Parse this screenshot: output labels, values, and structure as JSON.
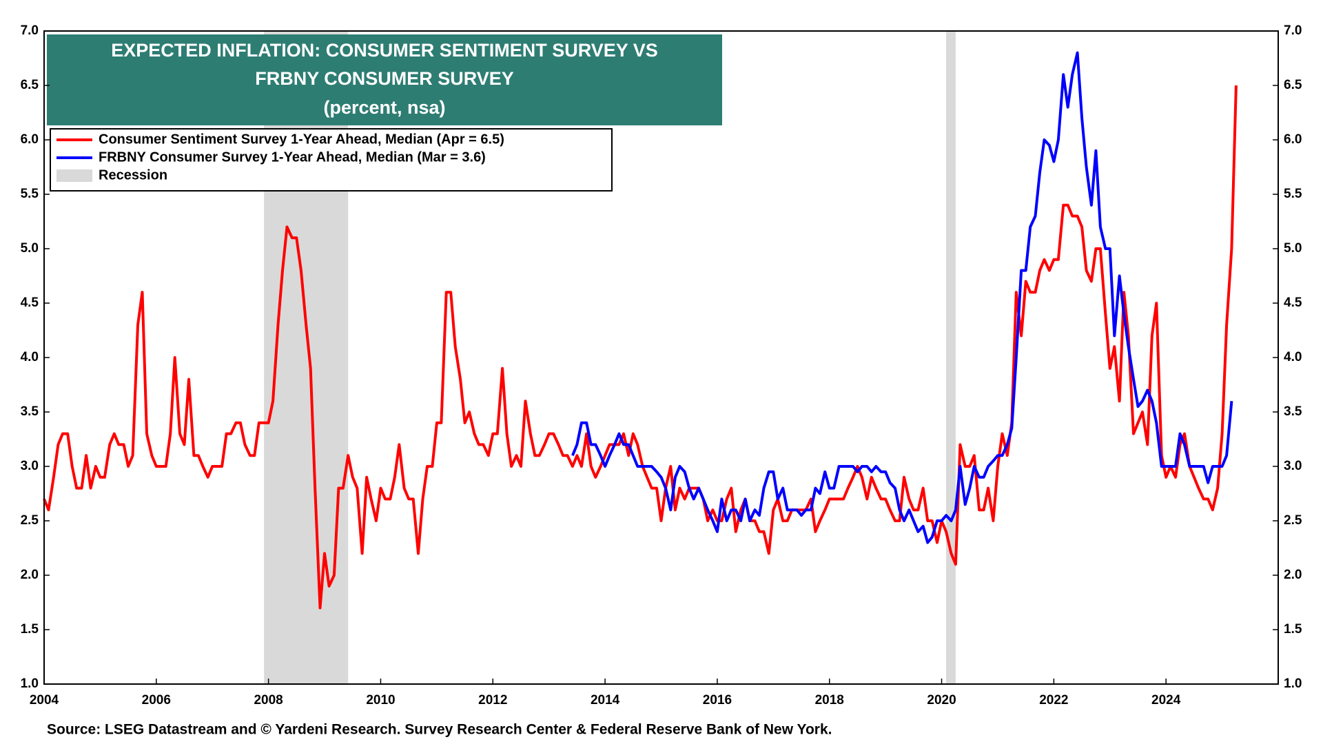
{
  "chart_data": {
    "type": "line",
    "title": [
      "EXPECTED INFLATION: CONSUMER SENTIMENT SURVEY VS",
      "FRBNY CONSUMER SURVEY"
    ],
    "subtitle": "(percent, nsa)",
    "source": "Source: LSEG Datastream and © Yardeni Research. Survey Research Center & Federal Reserve Bank of New York.",
    "xlim": [
      2004,
      2026
    ],
    "xticks": [
      2004,
      2006,
      2008,
      2010,
      2012,
      2014,
      2016,
      2018,
      2020,
      2022,
      2024
    ],
    "ylim": [
      1,
      7
    ],
    "yticks": [
      {
        "value": 1,
        "label": "1.0"
      },
      {
        "value": 1.5,
        "label": "1.5"
      },
      {
        "value": 2,
        "label": "2.0"
      },
      {
        "value": 2.5,
        "label": "2.5"
      },
      {
        "value": 3,
        "label": "3.0"
      },
      {
        "value": 3.5,
        "label": "3.5"
      },
      {
        "value": 4,
        "label": "4.0"
      },
      {
        "value": 4.5,
        "label": "4.5"
      },
      {
        "value": 5,
        "label": "5.0"
      },
      {
        "value": 5.5,
        "label": "5.5"
      },
      {
        "value": 6,
        "label": "6.0"
      },
      {
        "value": 6.5,
        "label": "6.5"
      },
      {
        "value": 7,
        "label": "7.0"
      }
    ],
    "y2lim": [
      1,
      7
    ],
    "y2ticks": [
      {
        "value": 1,
        "label": "1.0"
      },
      {
        "value": 1.5,
        "label": "1.5"
      },
      {
        "value": 2,
        "label": "2.0"
      },
      {
        "value": 2.5,
        "label": "2.5"
      },
      {
        "value": 3,
        "label": "3.0"
      },
      {
        "value": 3.5,
        "label": "3.5"
      },
      {
        "value": 4,
        "label": "4.0"
      },
      {
        "value": 4.5,
        "label": "4.5"
      },
      {
        "value": 5,
        "label": "5.0"
      },
      {
        "value": 5.5,
        "label": "5.5"
      },
      {
        "value": 6,
        "label": "6.0"
      },
      {
        "value": 6.5,
        "label": "6.5"
      },
      {
        "value": 7,
        "label": "7.0"
      }
    ],
    "grid": false,
    "legend_position": "upper left",
    "recession": {
      "name": "Recession",
      "color": "#d9d9d9",
      "ranges": [
        [
          2007.92,
          2009.42
        ],
        [
          2020.08,
          2020.25
        ]
      ]
    },
    "series": [
      {
        "name": "Consumer Sentiment Survey 1-Year Ahead, Median (Apr = 6.5)",
        "color": "#ff0000",
        "x": [
          2004,
          2004.08,
          2004.17,
          2004.25,
          2004.33,
          2004.42,
          2004.5,
          2004.58,
          2004.67,
          2004.75,
          2004.83,
          2004.92,
          2005,
          2005.08,
          2005.17,
          2005.25,
          2005.33,
          2005.42,
          2005.5,
          2005.58,
          2005.67,
          2005.75,
          2005.83,
          2005.92,
          2006,
          2006.08,
          2006.17,
          2006.25,
          2006.33,
          2006.42,
          2006.5,
          2006.58,
          2006.67,
          2006.75,
          2006.83,
          2006.92,
          2007,
          2007.08,
          2007.17,
          2007.25,
          2007.33,
          2007.42,
          2007.5,
          2007.58,
          2007.67,
          2007.75,
          2007.83,
          2007.92,
          2008,
          2008.08,
          2008.17,
          2008.25,
          2008.33,
          2008.42,
          2008.5,
          2008.58,
          2008.67,
          2008.75,
          2008.83,
          2008.92,
          2009,
          2009.08,
          2009.17,
          2009.25,
          2009.33,
          2009.42,
          2009.5,
          2009.58,
          2009.67,
          2009.75,
          2009.83,
          2009.92,
          2010,
          2010.08,
          2010.17,
          2010.25,
          2010.33,
          2010.42,
          2010.5,
          2010.58,
          2010.67,
          2010.75,
          2010.83,
          2010.92,
          2011,
          2011.08,
          2011.17,
          2011.25,
          2011.33,
          2011.42,
          2011.5,
          2011.58,
          2011.67,
          2011.75,
          2011.83,
          2011.92,
          2012,
          2012.08,
          2012.17,
          2012.25,
          2012.33,
          2012.42,
          2012.5,
          2012.58,
          2012.67,
          2012.75,
          2012.83,
          2012.92,
          2013,
          2013.08,
          2013.17,
          2013.25,
          2013.33,
          2013.42,
          2013.5,
          2013.58,
          2013.67,
          2013.75,
          2013.83,
          2013.92,
          2014,
          2014.08,
          2014.17,
          2014.25,
          2014.33,
          2014.42,
          2014.5,
          2014.58,
          2014.67,
          2014.75,
          2014.83,
          2014.92,
          2015,
          2015.08,
          2015.17,
          2015.25,
          2015.33,
          2015.42,
          2015.5,
          2015.58,
          2015.67,
          2015.75,
          2015.83,
          2015.92,
          2016,
          2016.08,
          2016.17,
          2016.25,
          2016.33,
          2016.42,
          2016.5,
          2016.58,
          2016.67,
          2016.75,
          2016.83,
          2016.92,
          2017,
          2017.08,
          2017.17,
          2017.25,
          2017.33,
          2017.42,
          2017.5,
          2017.58,
          2017.67,
          2017.75,
          2017.83,
          2017.92,
          2018,
          2018.08,
          2018.17,
          2018.25,
          2018.33,
          2018.42,
          2018.5,
          2018.58,
          2018.67,
          2018.75,
          2018.83,
          2018.92,
          2019,
          2019.08,
          2019.17,
          2019.25,
          2019.33,
          2019.42,
          2019.5,
          2019.58,
          2019.67,
          2019.75,
          2019.83,
          2019.92,
          2020,
          2020.08,
          2020.17,
          2020.25,
          2020.33,
          2020.42,
          2020.5,
          2020.58,
          2020.67,
          2020.75,
          2020.83,
          2020.92,
          2021,
          2021.08,
          2021.17,
          2021.25,
          2021.33,
          2021.42,
          2021.5,
          2021.58,
          2021.67,
          2021.75,
          2021.83,
          2021.92,
          2022,
          2022.08,
          2022.17,
          2022.25,
          2022.33,
          2022.42,
          2022.5,
          2022.58,
          2022.67,
          2022.75,
          2022.83,
          2022.92,
          2023,
          2023.08,
          2023.17,
          2023.25,
          2023.33,
          2023.42,
          2023.5,
          2023.58,
          2023.67,
          2023.75,
          2023.83,
          2023.92,
          2024,
          2024.08,
          2024.17,
          2024.25,
          2024.33,
          2024.42,
          2024.5,
          2024.58,
          2024.67,
          2024.75,
          2024.83,
          2024.92,
          2025,
          2025.08,
          2025.17,
          2025.25
        ],
        "values": [
          2.7,
          2.6,
          2.9,
          3.2,
          3.3,
          3.3,
          3.0,
          2.8,
          2.8,
          3.1,
          2.8,
          3.0,
          2.9,
          2.9,
          3.2,
          3.3,
          3.2,
          3.2,
          3.0,
          3.1,
          4.3,
          4.6,
          3.3,
          3.1,
          3.0,
          3.0,
          3.0,
          3.3,
          4.0,
          3.3,
          3.2,
          3.8,
          3.1,
          3.1,
          3.0,
          2.9,
          3.0,
          3.0,
          3.0,
          3.3,
          3.3,
          3.4,
          3.4,
          3.2,
          3.1,
          3.1,
          3.4,
          3.4,
          3.4,
          3.6,
          4.3,
          4.8,
          5.2,
          5.1,
          5.1,
          4.8,
          4.3,
          3.9,
          2.8,
          1.7,
          2.2,
          1.9,
          2.0,
          2.8,
          2.8,
          3.1,
          2.9,
          2.8,
          2.2,
          2.9,
          2.7,
          2.5,
          2.8,
          2.7,
          2.7,
          2.9,
          3.2,
          2.8,
          2.7,
          2.7,
          2.2,
          2.7,
          3.0,
          3.0,
          3.4,
          3.4,
          4.6,
          4.6,
          4.1,
          3.8,
          3.4,
          3.5,
          3.3,
          3.2,
          3.2,
          3.1,
          3.3,
          3.3,
          3.9,
          3.3,
          3.0,
          3.1,
          3.0,
          3.6,
          3.3,
          3.1,
          3.1,
          3.2,
          3.3,
          3.3,
          3.2,
          3.1,
          3.1,
          3.0,
          3.1,
          3.0,
          3.3,
          3.0,
          2.9,
          3.0,
          3.1,
          3.2,
          3.2,
          3.2,
          3.3,
          3.1,
          3.3,
          3.2,
          3.0,
          2.9,
          2.8,
          2.8,
          2.5,
          2.8,
          3.0,
          2.6,
          2.8,
          2.7,
          2.8,
          2.8,
          2.8,
          2.7,
          2.5,
          2.6,
          2.5,
          2.5,
          2.7,
          2.8,
          2.4,
          2.6,
          2.7,
          2.5,
          2.5,
          2.4,
          2.4,
          2.2,
          2.6,
          2.7,
          2.5,
          2.5,
          2.6,
          2.6,
          2.6,
          2.6,
          2.7,
          2.4,
          2.5,
          2.6,
          2.7,
          2.7,
          2.7,
          2.7,
          2.8,
          2.9,
          3.0,
          2.9,
          2.7,
          2.9,
          2.8,
          2.7,
          2.7,
          2.6,
          2.5,
          2.5,
          2.9,
          2.7,
          2.6,
          2.6,
          2.8,
          2.5,
          2.5,
          2.3,
          2.5,
          2.4,
          2.2,
          2.1,
          3.2,
          3.0,
          3.0,
          3.1,
          2.6,
          2.6,
          2.8,
          2.5,
          3.0,
          3.3,
          3.1,
          3.4,
          4.6,
          4.2,
          4.7,
          4.6,
          4.6,
          4.8,
          4.9,
          4.8,
          4.9,
          4.9,
          5.4,
          5.4,
          5.3,
          5.3,
          5.2,
          4.8,
          4.7,
          5.0,
          5.0,
          4.4,
          3.9,
          4.1,
          3.6,
          4.6,
          4.2,
          3.3,
          3.4,
          3.5,
          3.2,
          4.2,
          4.5,
          3.1,
          2.9,
          3.0,
          2.9,
          3.2,
          3.3,
          3.0,
          2.9,
          2.8,
          2.7,
          2.7,
          2.6,
          2.8,
          3.3,
          4.3,
          5.0,
          6.5
        ]
      },
      {
        "name": "FRBNY Consumer Survey 1-Year Ahead, Median (Mar = 3.6)",
        "color": "#0000ff",
        "x": [
          2013.42,
          2013.5,
          2013.58,
          2013.67,
          2013.75,
          2013.83,
          2013.92,
          2014,
          2014.08,
          2014.17,
          2014.25,
          2014.33,
          2014.42,
          2014.5,
          2014.58,
          2014.67,
          2014.75,
          2014.83,
          2014.92,
          2015,
          2015.08,
          2015.17,
          2015.25,
          2015.33,
          2015.42,
          2015.5,
          2015.58,
          2015.67,
          2015.75,
          2015.83,
          2015.92,
          2016,
          2016.08,
          2016.17,
          2016.25,
          2016.33,
          2016.42,
          2016.5,
          2016.58,
          2016.67,
          2016.75,
          2016.83,
          2016.92,
          2017,
          2017.08,
          2017.17,
          2017.25,
          2017.33,
          2017.42,
          2017.5,
          2017.58,
          2017.67,
          2017.75,
          2017.83,
          2017.92,
          2018,
          2018.08,
          2018.17,
          2018.25,
          2018.33,
          2018.42,
          2018.5,
          2018.58,
          2018.67,
          2018.75,
          2018.83,
          2018.92,
          2019,
          2019.08,
          2019.17,
          2019.25,
          2019.33,
          2019.42,
          2019.5,
          2019.58,
          2019.67,
          2019.75,
          2019.83,
          2019.92,
          2020,
          2020.08,
          2020.17,
          2020.25,
          2020.33,
          2020.42,
          2020.5,
          2020.58,
          2020.67,
          2020.75,
          2020.83,
          2020.92,
          2021,
          2021.08,
          2021.17,
          2021.25,
          2021.33,
          2021.42,
          2021.5,
          2021.58,
          2021.67,
          2021.75,
          2021.83,
          2021.92,
          2022,
          2022.08,
          2022.17,
          2022.25,
          2022.33,
          2022.42,
          2022.5,
          2022.58,
          2022.67,
          2022.75,
          2022.83,
          2022.92,
          2023,
          2023.08,
          2023.17,
          2023.25,
          2023.33,
          2023.42,
          2023.5,
          2023.58,
          2023.67,
          2023.75,
          2023.83,
          2023.92,
          2024,
          2024.08,
          2024.17,
          2024.25,
          2024.33,
          2024.42,
          2024.5,
          2024.58,
          2024.67,
          2024.75,
          2024.83,
          2024.92,
          2025,
          2025.08,
          2025.17
        ],
        "values": [
          3.1,
          3.2,
          3.4,
          3.4,
          3.2,
          3.2,
          3.1,
          3.0,
          3.1,
          3.2,
          3.3,
          3.2,
          3.2,
          3.1,
          3.0,
          3.0,
          3.0,
          3.0,
          2.95,
          2.9,
          2.8,
          2.6,
          2.9,
          3.0,
          2.95,
          2.8,
          2.7,
          2.8,
          2.7,
          2.6,
          2.5,
          2.4,
          2.7,
          2.5,
          2.6,
          2.6,
          2.5,
          2.7,
          2.5,
          2.6,
          2.55,
          2.8,
          2.95,
          2.95,
          2.7,
          2.8,
          2.6,
          2.6,
          2.6,
          2.55,
          2.6,
          2.6,
          2.8,
          2.75,
          2.95,
          2.8,
          2.8,
          3.0,
          3.0,
          3.0,
          3.0,
          2.95,
          3.0,
          3.0,
          2.95,
          3.0,
          2.95,
          2.95,
          2.85,
          2.8,
          2.6,
          2.5,
          2.6,
          2.5,
          2.4,
          2.45,
          2.3,
          2.35,
          2.5,
          2.5,
          2.55,
          2.5,
          2.6,
          3.0,
          2.65,
          2.8,
          3.0,
          2.9,
          2.9,
          3.0,
          3.05,
          3.1,
          3.1,
          3.2,
          3.35,
          4.0,
          4.8,
          4.8,
          5.2,
          5.3,
          5.7,
          6.0,
          5.95,
          5.8,
          6.0,
          6.6,
          6.3,
          6.6,
          6.8,
          6.2,
          5.75,
          5.4,
          5.9,
          5.2,
          5.0,
          5.0,
          4.2,
          4.75,
          4.4,
          4.1,
          3.8,
          3.55,
          3.6,
          3.7,
          3.6,
          3.4,
          3.0,
          3.0,
          3.0,
          3.0,
          3.3,
          3.2,
          3.0,
          3.0,
          3.0,
          3.0,
          2.85,
          3.0,
          3.0,
          3.0,
          3.1,
          3.6
        ]
      }
    ]
  }
}
